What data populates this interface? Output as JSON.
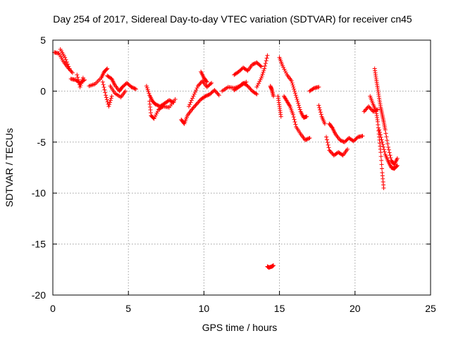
{
  "chart_data": {
    "type": "scatter",
    "title": "Day 254 of 2017, Sidereal Day-to-day VTEC variation (SDTVAR) for receiver cn45",
    "xlabel": "GPS time / hours",
    "ylabel": "SDTVAR / TECUs",
    "xlim": [
      0,
      25
    ],
    "ylim": [
      -20,
      5
    ],
    "xticks": [
      0,
      5,
      10,
      15,
      20,
      25
    ],
    "yticks": [
      -20,
      -15,
      -10,
      -5,
      0,
      5
    ],
    "grid": true,
    "marker": "+",
    "color": "#ff0000",
    "segments": [
      {
        "x": [
          0.1,
          0.4,
          0.7,
          1.0,
          1.3
        ],
        "y": [
          3.8,
          3.7,
          2.9,
          2.3,
          1.8
        ]
      },
      {
        "x": [
          0.5,
          0.8,
          1.1
        ],
        "y": [
          4.1,
          3.3,
          2.2
        ]
      },
      {
        "x": [
          1.2,
          1.5,
          1.8,
          2.1
        ],
        "y": [
          1.2,
          1.1,
          0.8,
          1.1
        ]
      },
      {
        "x": [
          1.6,
          1.8,
          2.0
        ],
        "y": [
          1.6,
          0.4,
          1.3
        ]
      },
      {
        "x": [
          2.4,
          2.8,
          3.2,
          3.4,
          3.6
        ],
        "y": [
          0.5,
          0.7,
          1.3,
          1.9,
          2.2
        ]
      },
      {
        "x": [
          3.3,
          3.5,
          3.7,
          3.9
        ],
        "y": [
          0.9,
          -0.4,
          -1.5,
          -0.5
        ]
      },
      {
        "x": [
          3.6,
          3.9,
          4.1,
          4.4,
          4.6,
          4.9,
          5.2,
          5.5
        ],
        "y": [
          1.5,
          1.2,
          0.6,
          0.0,
          0.4,
          0.8,
          0.4,
          0.2
        ]
      },
      {
        "x": [
          3.8,
          4.1,
          4.5,
          4.8
        ],
        "y": [
          0.5,
          -0.2,
          -0.6,
          0.0
        ]
      },
      {
        "x": [
          6.2,
          6.4,
          6.6,
          6.8,
          7.1,
          7.4,
          7.7,
          8.0
        ],
        "y": [
          0.5,
          -0.4,
          -1.0,
          -1.3,
          -1.5,
          -1.2,
          -0.9,
          -1.1
        ]
      },
      {
        "x": [
          6.4,
          6.5,
          6.7,
          7.0,
          7.3,
          7.7,
          8.1
        ],
        "y": [
          -1.0,
          -2.4,
          -2.7,
          -1.8,
          -1.5,
          -1.6,
          -0.8
        ]
      },
      {
        "x": [
          8.5,
          8.7,
          8.9,
          9.2,
          9.5,
          9.8,
          10.1,
          10.4,
          10.7,
          11.0
        ],
        "y": [
          -2.8,
          -3.2,
          -2.4,
          -1.8,
          -1.3,
          -0.8,
          -0.5,
          -0.3,
          0.1,
          -0.4
        ]
      },
      {
        "x": [
          9.0,
          9.3,
          9.6,
          9.9,
          10.2,
          10.5
        ],
        "y": [
          -1.5,
          -0.5,
          0.5,
          1.0,
          0.4,
          0.8
        ]
      },
      {
        "x": [
          9.8,
          10.0,
          10.2
        ],
        "y": [
          1.9,
          1.3,
          0.9
        ]
      },
      {
        "x": [
          11.2,
          11.6,
          12.0,
          12.4,
          12.8
        ],
        "y": [
          0.0,
          0.4,
          0.3,
          0.5,
          0.9
        ]
      },
      {
        "x": [
          12.0,
          12.3,
          12.6,
          12.9,
          13.2,
          13.5,
          13.8
        ],
        "y": [
          1.6,
          1.9,
          2.3,
          2.0,
          2.6,
          2.8,
          2.4
        ]
      },
      {
        "x": [
          12.0,
          12.3,
          12.6,
          12.9,
          13.2,
          13.5
        ],
        "y": [
          0.1,
          0.4,
          0.8,
          0.5,
          0.0,
          -0.3
        ]
      },
      {
        "x": [
          13.5,
          13.8,
          14.0,
          14.2
        ],
        "y": [
          0.4,
          1.3,
          2.2,
          3.5
        ]
      },
      {
        "x": [
          14.2,
          14.3,
          14.5,
          14.6
        ],
        "y": [
          -17.2,
          -17.3,
          -17.2,
          -17.1
        ]
      },
      {
        "x": [
          14.4,
          14.5,
          14.6
        ],
        "y": [
          0.5,
          0.1,
          -0.5
        ]
      },
      {
        "x": [
          14.9,
          15.0,
          15.1
        ],
        "y": [
          -0.5,
          -1.5,
          -2.5
        ]
      },
      {
        "x": [
          15.0,
          15.2,
          15.5,
          15.8,
          16.0,
          16.2,
          16.4,
          16.6,
          16.8
        ],
        "y": [
          3.3,
          2.5,
          1.6,
          1.0,
          0.0,
          -1.0,
          -2.0,
          -2.6,
          -2.5
        ]
      },
      {
        "x": [
          15.3,
          15.5,
          15.7,
          15.9,
          16.1,
          16.4,
          16.7,
          17.0
        ],
        "y": [
          -0.5,
          -1.0,
          -1.5,
          -2.3,
          -3.5,
          -4.2,
          -4.8,
          -4.6
        ]
      },
      {
        "x": [
          17.0,
          17.3,
          17.6
        ],
        "y": [
          0.0,
          0.3,
          0.4
        ]
      },
      {
        "x": [
          17.6,
          17.8,
          18.0
        ],
        "y": [
          -1.4,
          -2.5,
          -3.2
        ]
      },
      {
        "x": [
          18.3,
          18.5,
          18.7,
          19.0,
          19.3,
          19.6,
          19.9,
          20.2,
          20.5
        ],
        "y": [
          -3.2,
          -3.6,
          -4.2,
          -4.8,
          -5.0,
          -4.6,
          -4.9,
          -4.5,
          -4.4
        ]
      },
      {
        "x": [
          18.1,
          18.3,
          18.6,
          18.9,
          19.2,
          19.5
        ],
        "y": [
          -4.5,
          -5.8,
          -6.3,
          -6.0,
          -6.3,
          -5.7
        ]
      },
      {
        "x": [
          20.6,
          20.9,
          21.2,
          21.5
        ],
        "y": [
          -2.0,
          -1.5,
          -2.0,
          -1.8
        ]
      },
      {
        "x": [
          21.3,
          21.4,
          21.5,
          21.6,
          21.7,
          21.8,
          21.9,
          22.0,
          22.2,
          22.4,
          22.6,
          22.8
        ],
        "y": [
          2.2,
          1.2,
          0.3,
          -0.7,
          -1.6,
          -2.3,
          -3.0,
          -3.8,
          -5.5,
          -6.8,
          -7.2,
          -6.6
        ]
      },
      {
        "x": [
          21.0,
          21.2,
          21.4,
          21.5,
          21.6,
          21.7,
          21.8,
          21.9
        ],
        "y": [
          -0.5,
          -1.3,
          -2.0,
          -3.0,
          -4.5,
          -6.0,
          -8.0,
          -9.5
        ]
      },
      {
        "x": [
          21.6,
          21.8,
          22.0,
          22.2,
          22.4,
          22.6,
          22.8
        ],
        "y": [
          -3.8,
          -5.0,
          -6.2,
          -6.9,
          -7.5,
          -7.6,
          -7.3
        ]
      }
    ]
  }
}
